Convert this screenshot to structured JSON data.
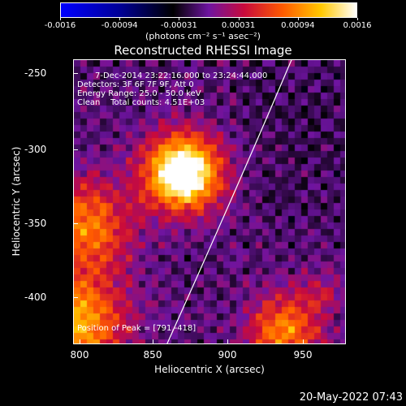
{
  "colorbar": {
    "tick_labels": [
      "-0.0016",
      "-0.00094",
      "-0.00031",
      "0.00031",
      "0.00094",
      "0.0016"
    ],
    "units_label": "(photons cm⁻² s⁻¹ asec⁻²)"
  },
  "title": "Reconstructed RHESSI Image",
  "info": {
    "time_range": "7-Dec-2014 23:22:16.000 to 23:24:44.000",
    "detectors": "Detectors: 3F 6F 7F 9F, Att 0",
    "energy": "Energy Range: 25.0 - 50.0 keV",
    "clean": "Clean    Total counts: 4.51E+03",
    "peak": "Position of Peak = [791,-418]"
  },
  "x_axis": {
    "label": "Heliocentric X (arcsec)",
    "ticks": [
      "800",
      "850",
      "900",
      "950"
    ]
  },
  "y_axis": {
    "label": "Heliocentric Y (arcsec)",
    "ticks": [
      "-250",
      "-300",
      "-350",
      "-400"
    ]
  },
  "timestamp": "20-May-2022 07:43",
  "colors": {
    "background": "#000000",
    "text": "#ffffff"
  }
}
